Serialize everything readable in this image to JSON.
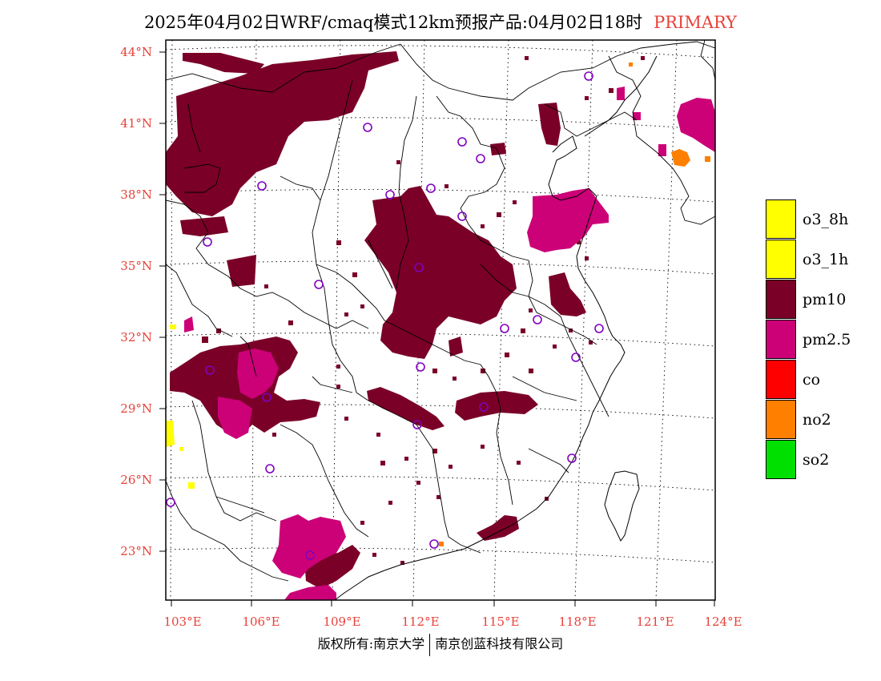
{
  "title": {
    "main": "2025年04月02日WRF/cmaq模式12km预报产品:04月02日18时",
    "tag": "PRIMARY",
    "tag_color": "#e8413a"
  },
  "axes": {
    "lat_ticks": [
      "44°N",
      "41°N",
      "38°N",
      "35°N",
      "32°N",
      "29°N",
      "26°N",
      "23°N"
    ],
    "lon_ticks": [
      "103°E",
      "106°E",
      "109°E",
      "112°E",
      "115°E",
      "118°E",
      "121°E",
      "124°E"
    ],
    "tick_color": "#e8413a"
  },
  "legend": {
    "items": [
      {
        "label": "o3_8h",
        "color": "#ffff00"
      },
      {
        "label": "o3_1h",
        "color": "#ffff00"
      },
      {
        "label": "pm10",
        "color": "#7a0028"
      },
      {
        "label": "pm2.5",
        "color": "#cc0077"
      },
      {
        "label": "co",
        "color": "#ff0000"
      },
      {
        "label": "no2",
        "color": "#ff7f00"
      },
      {
        "label": "so2",
        "color": "#00e000"
      }
    ]
  },
  "footer": {
    "left": "版权所有:南京大学",
    "right": "南京创蓝科技有限公司"
  },
  "map": {
    "pollutant_colors": {
      "pm10": "#7a0028",
      "pm25": "#cc0077",
      "no2": "#ff7f00",
      "o3": "#ffff00"
    }
  }
}
